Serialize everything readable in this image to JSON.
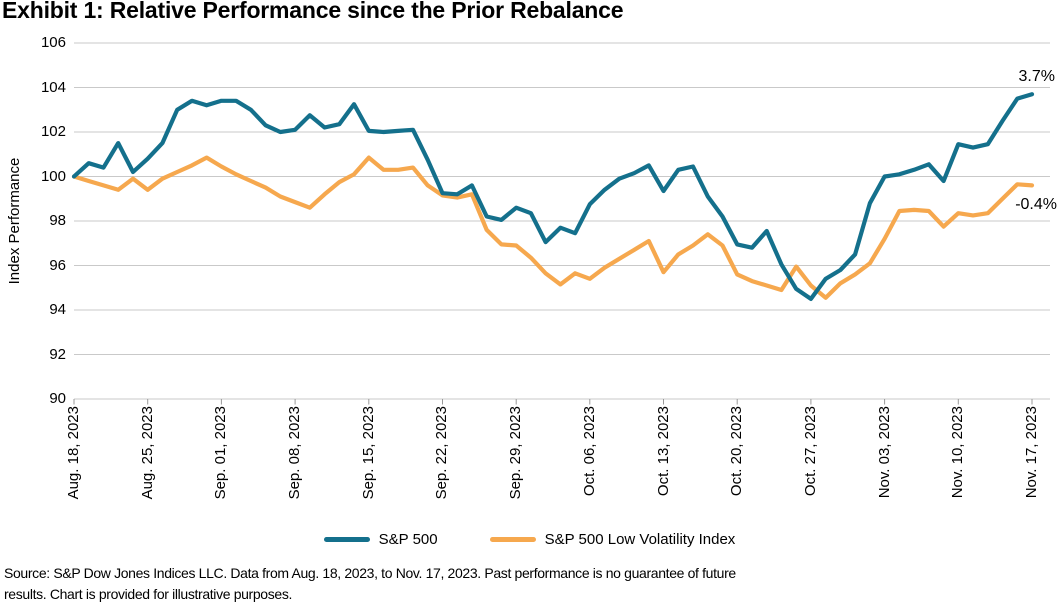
{
  "title": "Exhibit 1: Relative Performance since the Prior Rebalance",
  "annotations": {
    "sp500_end_label": "3.7%",
    "lowvol_end_label": "-0.4%"
  },
  "legend": [
    {
      "label": "S&P 500",
      "color": "#14708C"
    },
    {
      "label": "S&P 500 Low Volatility Index",
      "color": "#F6A84E"
    }
  ],
  "footer": {
    "line1": "Source: S&P Dow Jones Indices LLC. Data from Aug. 18, 2023, to Nov. 17, 2023. Past performance is no guarantee of future",
    "line2": "results. Chart is provided for illustrative purposes."
  },
  "colors": {
    "sp500": "#14708C",
    "lowvol": "#F6A84E",
    "gridline": "#C9C9C9",
    "tick": "#999999",
    "text": "#000000"
  },
  "chart_data": {
    "type": "line",
    "title": "Exhibit 1: Relative Performance since the Prior Rebalance",
    "xlabel": "",
    "ylabel": "Index Performance",
    "ylim": [
      90,
      106
    ],
    "grid": true,
    "legend_position": "bottom",
    "y_ticks": [
      106,
      104,
      102,
      100,
      98,
      96,
      94,
      92,
      90
    ],
    "x_tick_labels": [
      "Aug. 18, 2023",
      "Aug. 25, 2023",
      "Sep. 01, 2023",
      "Sep. 08, 2023",
      "Sep. 15, 2023",
      "Sep. 22, 2023",
      "Sep. 29, 2023",
      "Oct. 06, 2023",
      "Oct. 13, 2023",
      "Oct. 20, 2023",
      "Oct. 27, 2023",
      "Nov. 03, 2023",
      "Nov. 10, 2023",
      "Nov. 17, 2023"
    ],
    "x_tick_indices": [
      0,
      5,
      10,
      15,
      20,
      25,
      30,
      35,
      40,
      45,
      50,
      55,
      60,
      65
    ],
    "x": [
      "Aug. 18",
      "Aug. 21",
      "Aug. 22",
      "Aug. 23",
      "Aug. 24",
      "Aug. 25",
      "Aug. 28",
      "Aug. 29",
      "Aug. 30",
      "Aug. 31",
      "Sep. 01",
      "Sep. 04",
      "Sep. 05",
      "Sep. 06",
      "Sep. 07",
      "Sep. 08",
      "Sep. 11",
      "Sep. 12",
      "Sep. 13",
      "Sep. 14",
      "Sep. 15",
      "Sep. 18",
      "Sep. 19",
      "Sep. 20",
      "Sep. 21",
      "Sep. 22",
      "Sep. 25",
      "Sep. 26",
      "Sep. 27",
      "Sep. 28",
      "Sep. 29",
      "Oct. 02",
      "Oct. 03",
      "Oct. 04",
      "Oct. 05",
      "Oct. 06",
      "Oct. 09",
      "Oct. 10",
      "Oct. 11",
      "Oct. 12",
      "Oct. 13",
      "Oct. 16",
      "Oct. 17",
      "Oct. 18",
      "Oct. 19",
      "Oct. 20",
      "Oct. 23",
      "Oct. 24",
      "Oct. 25",
      "Oct. 26",
      "Oct. 27",
      "Oct. 30",
      "Oct. 31",
      "Nov. 01",
      "Nov. 02",
      "Nov. 03",
      "Nov. 06",
      "Nov. 07",
      "Nov. 08",
      "Nov. 09",
      "Nov. 10",
      "Nov. 13",
      "Nov. 14",
      "Nov. 15",
      "Nov. 16",
      "Nov. 17"
    ],
    "series": [
      {
        "name": "S&P 500",
        "color": "#14708C",
        "end_value_label": "3.7%",
        "values": [
          100.0,
          100.6,
          100.4,
          101.5,
          100.2,
          100.8,
          101.5,
          103.0,
          103.4,
          103.2,
          103.4,
          103.4,
          103.0,
          102.3,
          102.0,
          102.1,
          102.75,
          102.2,
          102.35,
          103.25,
          102.05,
          102.0,
          102.05,
          102.1,
          100.75,
          99.25,
          99.2,
          99.6,
          98.2,
          98.05,
          98.6,
          98.35,
          97.05,
          97.7,
          97.45,
          98.75,
          99.4,
          99.9,
          100.15,
          100.5,
          99.35,
          100.3,
          100.45,
          99.1,
          98.2,
          96.95,
          96.8,
          97.55,
          96.05,
          94.95,
          94.5,
          95.4,
          95.8,
          96.5,
          98.8,
          100.0,
          100.1,
          100.3,
          100.55,
          99.8,
          101.45,
          101.3,
          101.45,
          102.5,
          103.5,
          103.7
        ]
      },
      {
        "name": "S&P 500 Low Volatility Index",
        "color": "#F6A84E",
        "end_value_label": "-0.4%",
        "values": [
          100.0,
          99.8,
          99.6,
          99.4,
          99.9,
          99.4,
          99.9,
          100.2,
          100.5,
          100.85,
          100.45,
          100.1,
          99.8,
          99.5,
          99.1,
          98.85,
          98.6,
          99.2,
          99.75,
          100.1,
          100.85,
          100.3,
          100.3,
          100.4,
          99.6,
          99.15,
          99.05,
          99.2,
          97.6,
          96.95,
          96.9,
          96.35,
          95.65,
          95.15,
          95.65,
          95.4,
          95.9,
          96.3,
          96.7,
          97.1,
          95.7,
          96.5,
          96.9,
          97.4,
          96.9,
          95.6,
          95.3,
          95.1,
          94.9,
          95.95,
          95.1,
          94.55,
          95.2,
          95.6,
          96.1,
          97.2,
          98.45,
          98.5,
          98.45,
          97.75,
          98.35,
          98.25,
          98.35,
          99.0,
          99.65,
          99.6
        ]
      }
    ]
  }
}
